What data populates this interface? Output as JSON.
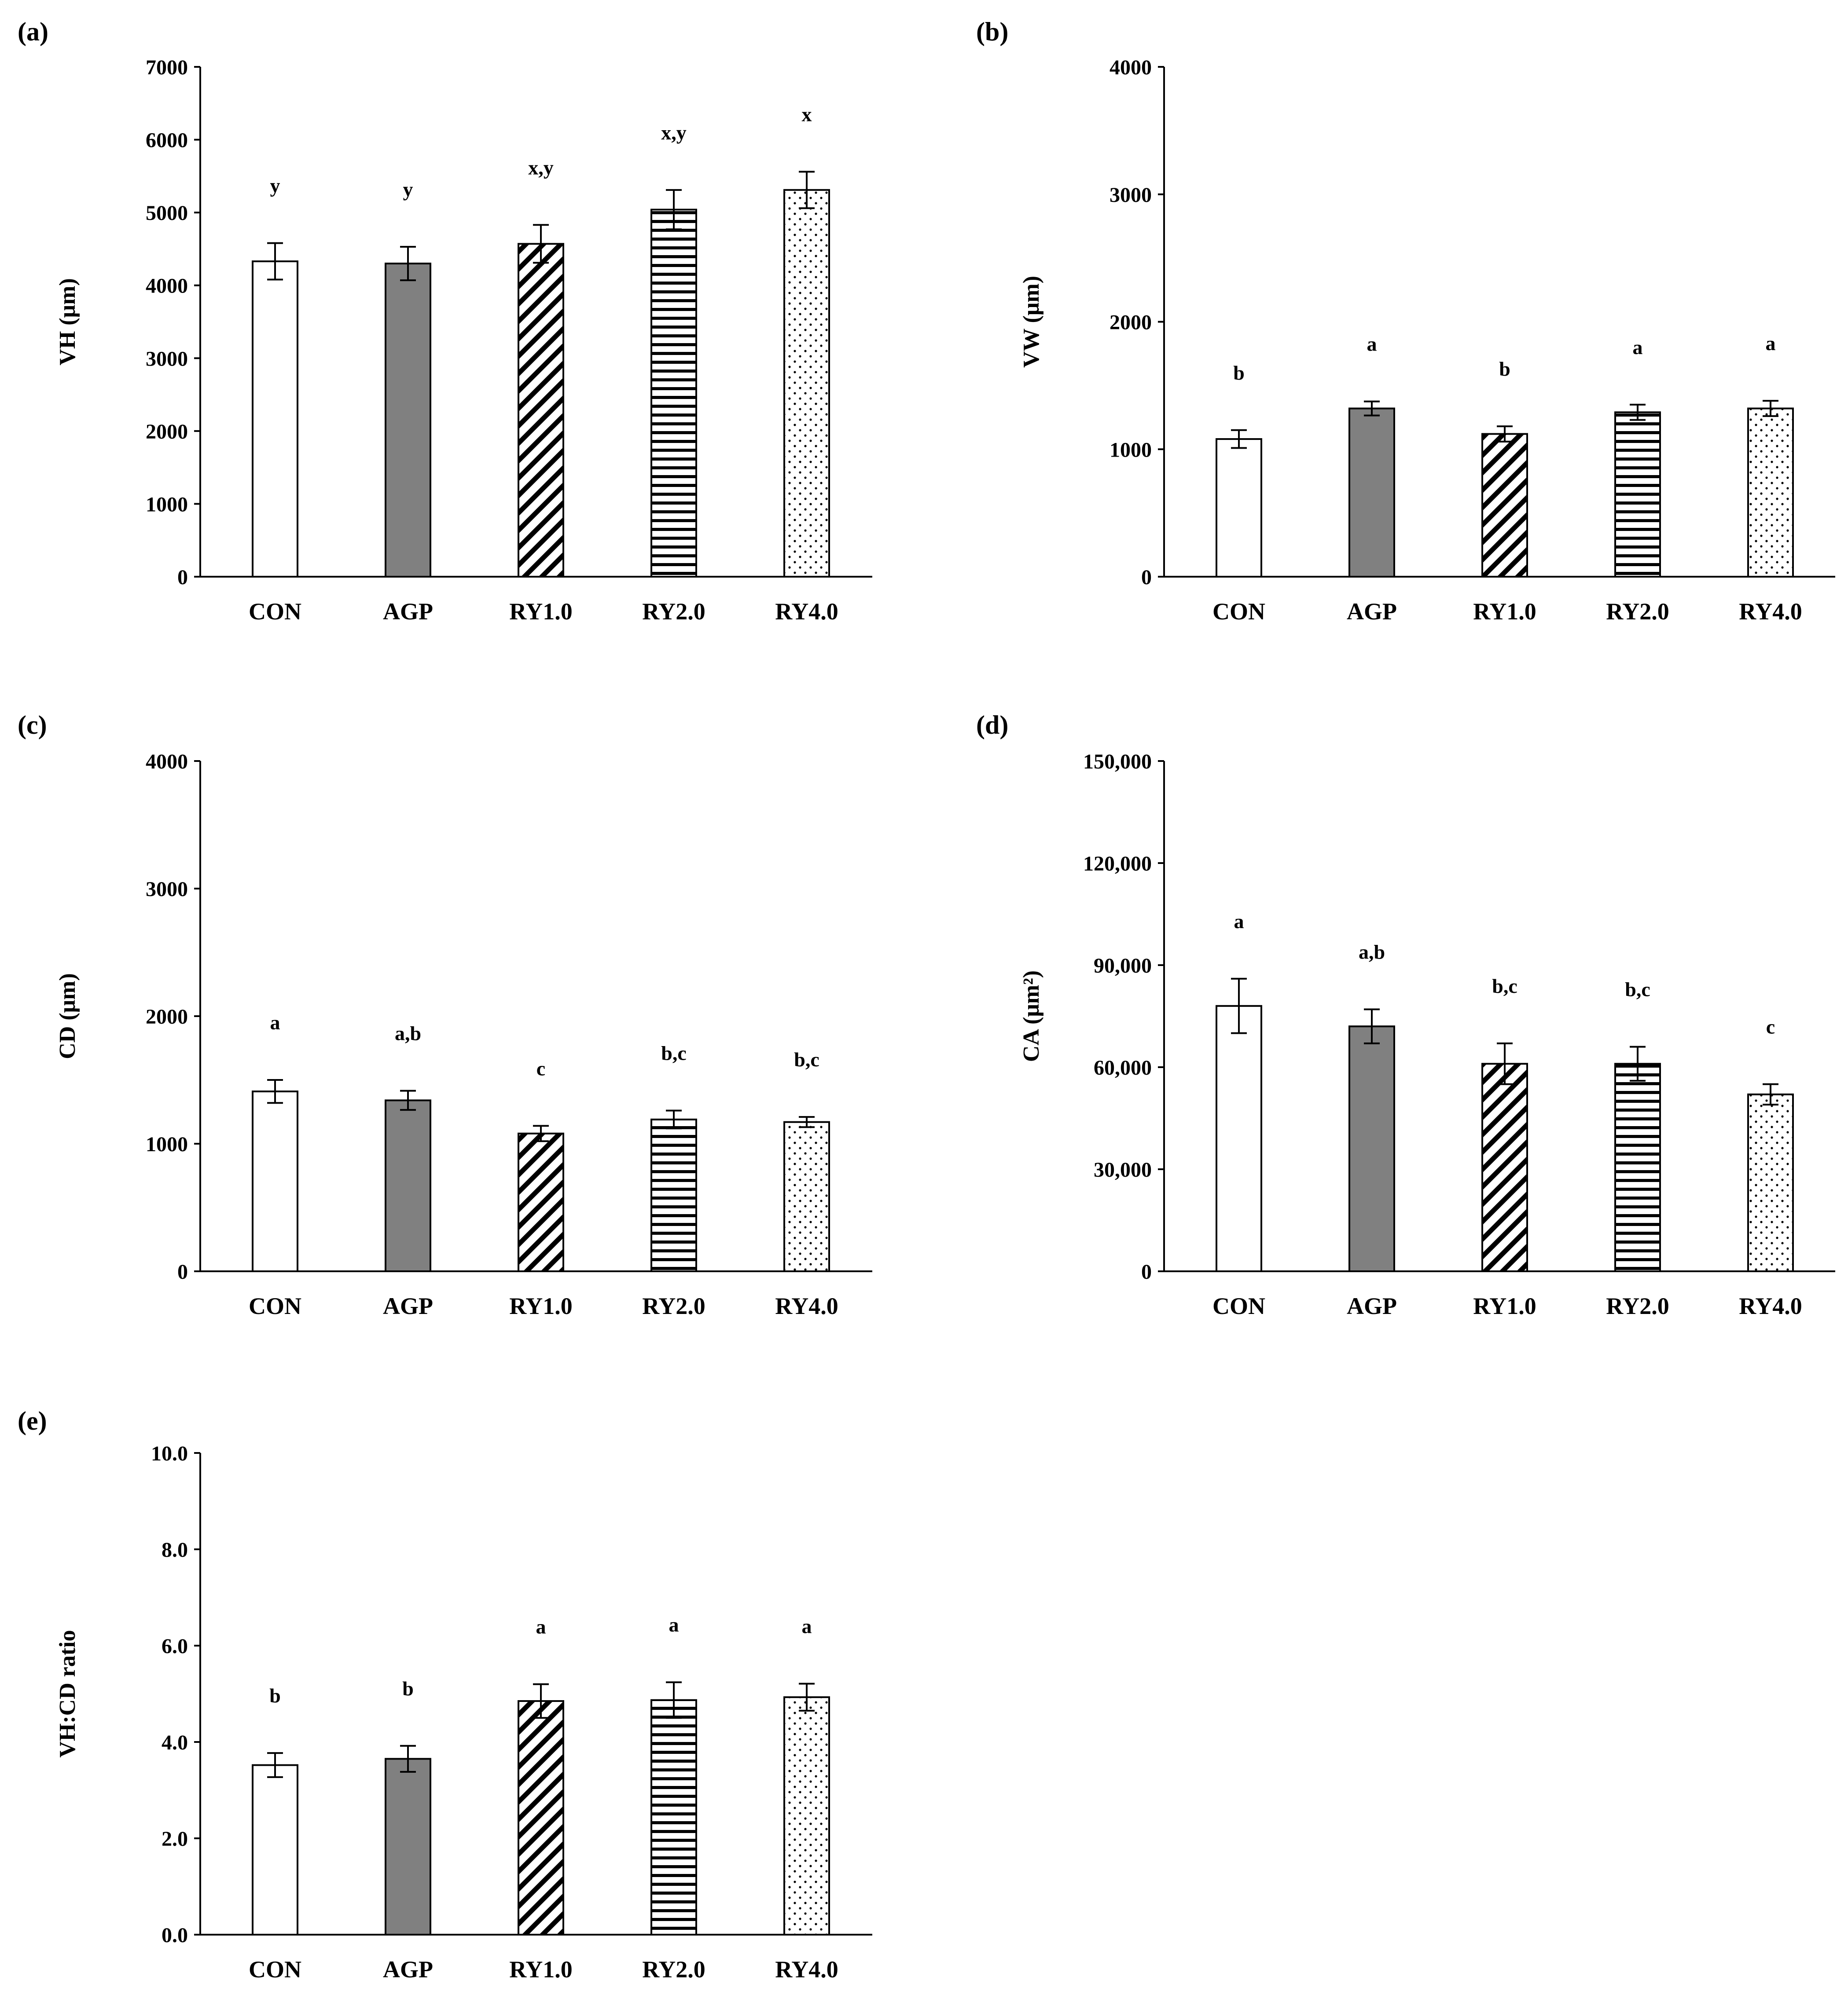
{
  "chart_data": [
    {
      "type": "bar",
      "panel": "(a)",
      "ylabel": "VH (μm)",
      "categories": [
        "CON",
        "AGP",
        "RY1.0",
        "RY2.0",
        "RY4.0"
      ],
      "values": [
        4330,
        4300,
        4570,
        5040,
        5310
      ],
      "errors": [
        250,
        230,
        260,
        270,
        250
      ],
      "significance": [
        "y",
        "y",
        "x,y",
        "x,y",
        "x"
      ],
      "ylim": [
        0,
        7000
      ],
      "yticks": [
        0,
        1000,
        2000,
        3000,
        4000,
        5000,
        6000,
        7000
      ],
      "ytick_labels": [
        "0",
        "1000",
        "2000",
        "3000",
        "4000",
        "5000",
        "6000",
        "7000"
      ]
    },
    {
      "type": "bar",
      "panel": "(b)",
      "ylabel": "VW (μm)",
      "categories": [
        "CON",
        "AGP",
        "RY1.0",
        "RY2.0",
        "RY4.0"
      ],
      "values": [
        1080,
        1320,
        1120,
        1290,
        1320
      ],
      "errors": [
        70,
        55,
        60,
        60,
        60
      ],
      "significance": [
        "b",
        "a",
        "b",
        "a",
        "a"
      ],
      "ylim": [
        0,
        4000
      ],
      "yticks": [
        0,
        1000,
        2000,
        3000,
        4000
      ],
      "ytick_labels": [
        "0",
        "1000",
        "2000",
        "3000",
        "4000"
      ]
    },
    {
      "type": "bar",
      "panel": "(c)",
      "ylabel": "CD (μm)",
      "categories": [
        "CON",
        "AGP",
        "RY1.0",
        "RY2.0",
        "RY4.0"
      ],
      "values": [
        1410,
        1340,
        1080,
        1190,
        1170
      ],
      "errors": [
        90,
        75,
        60,
        70,
        40
      ],
      "significance": [
        "a",
        "a,b",
        "c",
        "b,c",
        "b,c"
      ],
      "ylim": [
        0,
        4000
      ],
      "yticks": [
        0,
        1000,
        2000,
        3000,
        4000
      ],
      "ytick_labels": [
        "0",
        "1000",
        "2000",
        "3000",
        "4000"
      ]
    },
    {
      "type": "bar",
      "panel": "(d)",
      "ylabel": "CA (μm²)",
      "categories": [
        "CON",
        "AGP",
        "RY1.0",
        "RY2.0",
        "RY4.0"
      ],
      "values": [
        78000,
        72000,
        61000,
        61000,
        52000
      ],
      "errors": [
        8000,
        5000,
        6000,
        5000,
        3000
      ],
      "significance": [
        "a",
        "a,b",
        "b,c",
        "b,c",
        "c"
      ],
      "ylim": [
        0,
        150000
      ],
      "yticks": [
        0,
        30000,
        60000,
        90000,
        120000,
        150000
      ],
      "ytick_labels": [
        "0",
        "30,000",
        "60,000",
        "90,000",
        "120,000",
        "150,000"
      ]
    },
    {
      "type": "bar",
      "panel": "(e)",
      "ylabel": "VH:CD ratio",
      "categories": [
        "CON",
        "AGP",
        "RY1.0",
        "RY2.0",
        "RY4.0"
      ],
      "values": [
        3.52,
        3.65,
        4.85,
        4.87,
        4.93
      ],
      "errors": [
        0.25,
        0.27,
        0.35,
        0.37,
        0.28
      ],
      "significance": [
        "b",
        "b",
        "a",
        "a",
        "a"
      ],
      "ylim": [
        0,
        10
      ],
      "yticks": [
        0,
        2,
        4,
        6,
        8,
        10
      ],
      "ytick_labels": [
        "0.0",
        "2.0",
        "4.0",
        "6.0",
        "8.0",
        "10.0"
      ]
    }
  ]
}
